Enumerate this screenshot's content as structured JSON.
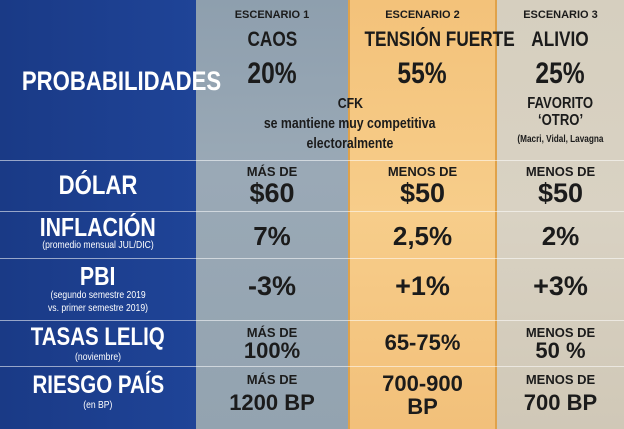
{
  "scenarios": [
    {
      "header": "ESCENARIO 1",
      "name": "CAOS",
      "pct": "20%"
    },
    {
      "header": "ESCENARIO 2",
      "name": "TENSIÓN FUERTE",
      "pct": "55%"
    },
    {
      "header": "ESCENARIO 3",
      "name": "ALIVIO",
      "pct": "25%"
    }
  ],
  "rows": {
    "probabilidades": {
      "label": "PROBABILIDADES"
    },
    "dolar": {
      "label": "DÓLAR",
      "c1_top": "MÁS DE",
      "c1_val": "$60",
      "c2_top": "MENOS DE",
      "c2_val": "$50",
      "c3_top": "MENOS DE",
      "c3_val": "$50"
    },
    "inflacion": {
      "label": "INFLACIÓN",
      "sub": "(promedio mensual JUL/DIC)",
      "c1": "7%",
      "c2": "2,5%",
      "c3": "2%"
    },
    "pbi": {
      "label": "PBI",
      "sub1": "(segundo semestre 2019",
      "sub2": "vs. primer semestre 2019)",
      "c1": "-3%",
      "c2": "+1%",
      "c3": "+3%"
    },
    "tasas": {
      "label": "TASAS LELIQ",
      "sub": "(noviembre)",
      "c1_top": "MÁS DE",
      "c1_val": "100%",
      "c2": "65-75%",
      "c3_top": "MENOS DE",
      "c3_val": "50 %"
    },
    "riesgo": {
      "label": "RIESGO PAÍS",
      "sub": "(en BP)",
      "c1_top": "MÁS DE",
      "c1_val": "1200 BP",
      "c2_l1": "700-900",
      "c2_l2": "BP",
      "c3_top": "MENOS DE",
      "c3_val": "700 BP"
    }
  },
  "notes": {
    "cfk_title": "CFK",
    "cfk_l1": "se mantiene muy competitiva",
    "cfk_l2": "electoralmente",
    "fav_l1": "FAVORITO",
    "fav_l2": "‘OTRO’",
    "fav_l3": "(Macri, Vidal, Lavagna"
  }
}
